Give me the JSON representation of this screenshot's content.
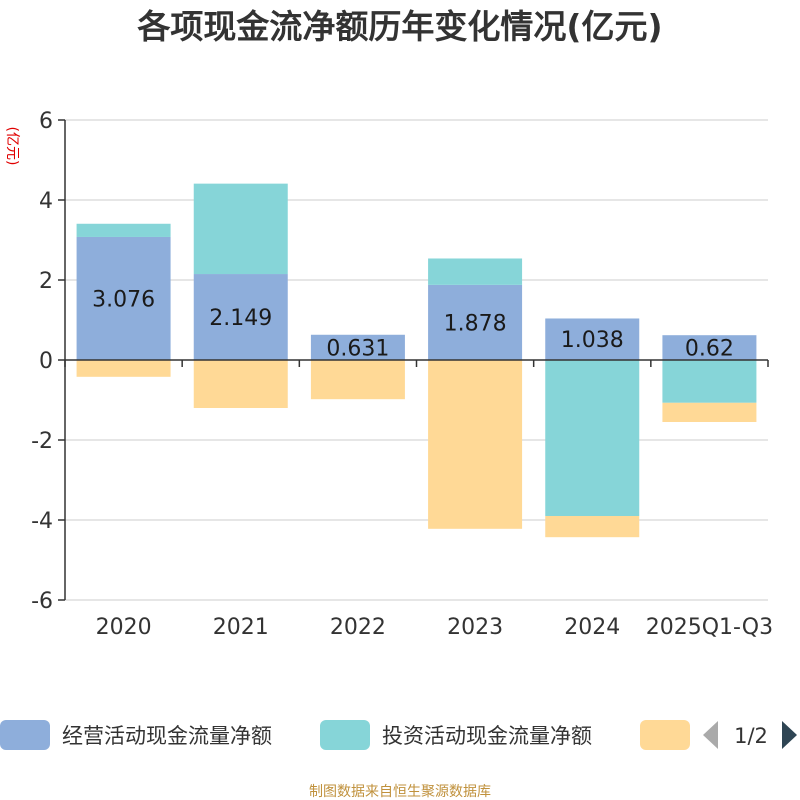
{
  "chart_data": {
    "type": "bar",
    "stacked": true,
    "title": "各项现金流净额历年变化情况(亿元)",
    "unit_label": "(亿元)",
    "categories": [
      "2020",
      "2021",
      "2022",
      "2023",
      "2024",
      "2025Q1-Q3"
    ],
    "ylim": [
      -6,
      6
    ],
    "yticks": [
      6,
      4,
      2,
      0,
      -2,
      -4,
      -6
    ],
    "grid": true,
    "series": [
      {
        "name": "经营活动现金流量净额",
        "color": "#8eaedb",
        "values": [
          3.076,
          2.149,
          0.631,
          1.878,
          1.038,
          0.62
        ],
        "show_labels": true
      },
      {
        "name": "投资活动现金流量净额",
        "color": "#86d5d8",
        "values": [
          0.33,
          2.26,
          0.0,
          0.66,
          -3.9,
          -1.07
        ],
        "show_labels": false
      },
      {
        "name": "",
        "color": "#ffd996",
        "values": [
          -0.42,
          -1.2,
          -0.98,
          -4.22,
          -0.53,
          -0.48
        ],
        "show_labels": false
      }
    ],
    "legend": {
      "position": "bottom",
      "page": "1/2"
    }
  },
  "source": "制图数据来自恒生聚源数据库"
}
